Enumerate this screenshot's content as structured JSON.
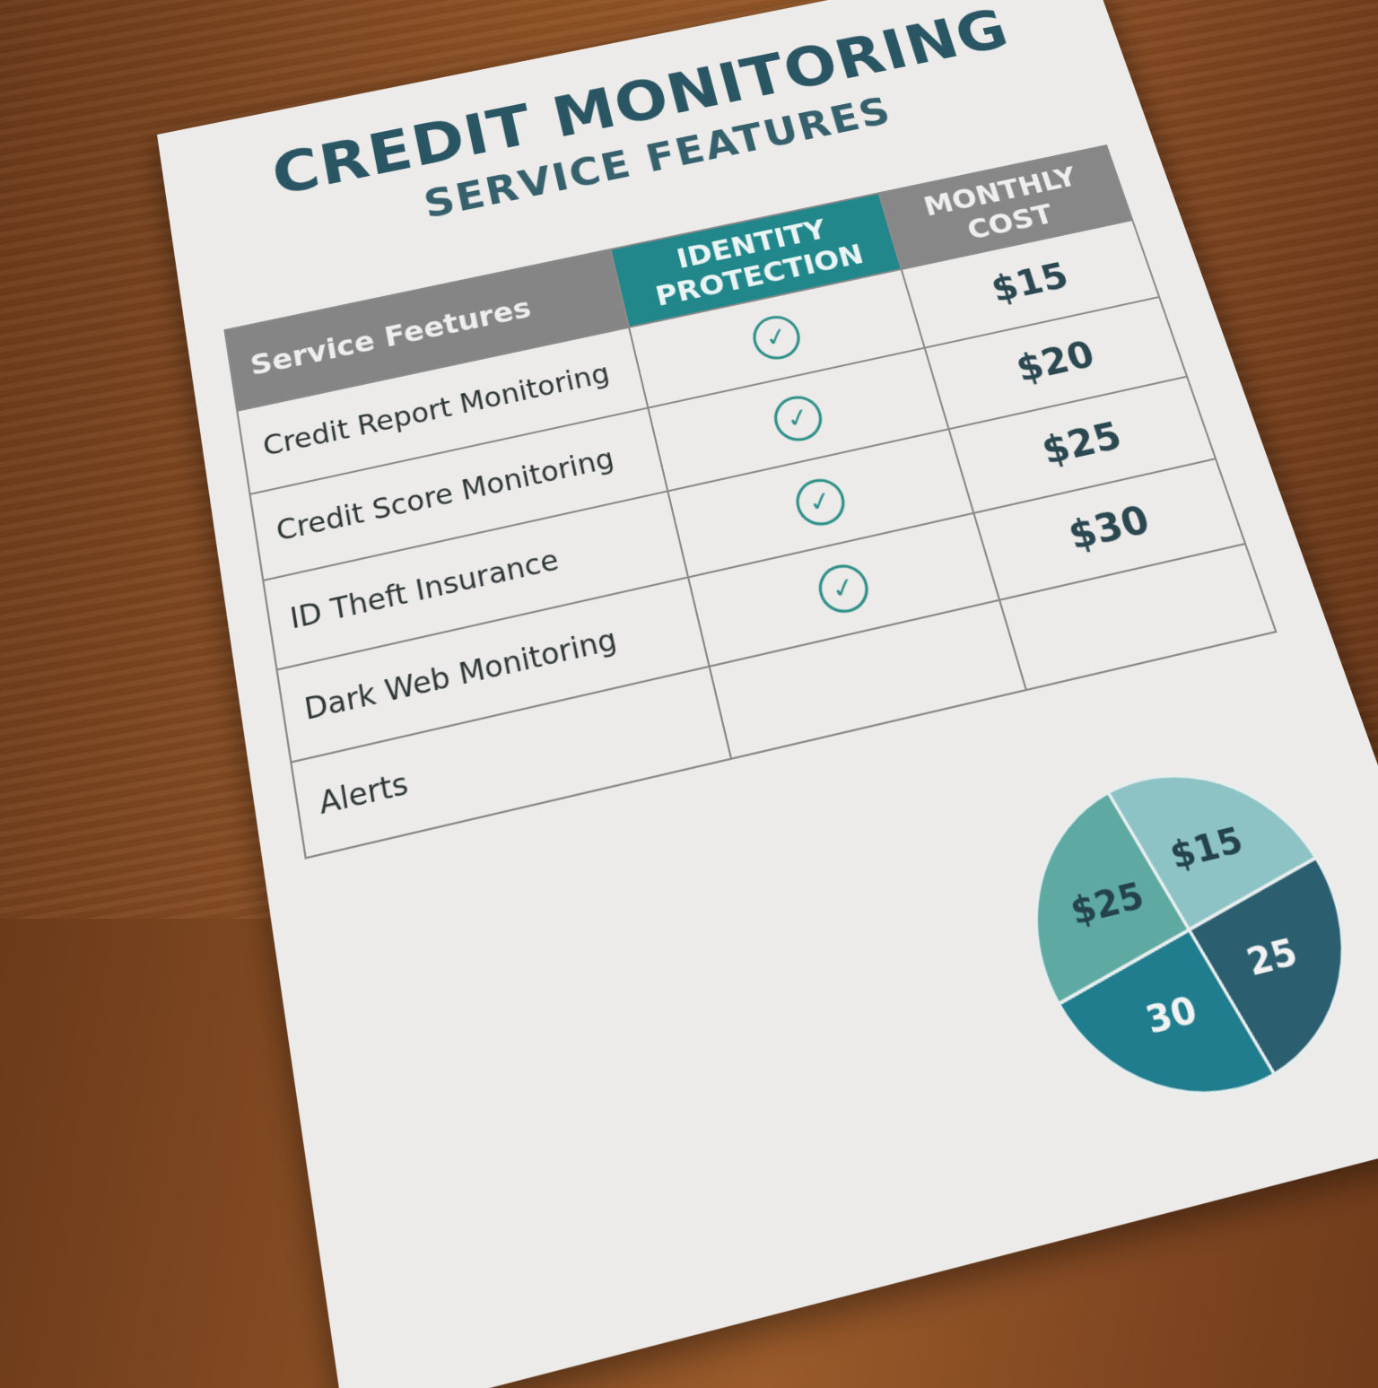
{
  "title": {
    "line1": "CREDIT MONITORING",
    "line2": "SERVICE FEATURES"
  },
  "table": {
    "headers": {
      "features": "Service Feetures",
      "identity": "IDENTITY PROTECTION",
      "cost": "MONTHLY COST"
    },
    "rows": [
      {
        "feature": "Credit Report Monitoring",
        "check": true,
        "cost": "$15"
      },
      {
        "feature": "Credit Score Monitoring",
        "check": true,
        "cost": "$20"
      },
      {
        "feature": "ID Theft Insurance",
        "check": true,
        "cost": "$25"
      },
      {
        "feature": "Dark Web Monitoring",
        "check": true,
        "cost": "$30"
      },
      {
        "feature": "Alerts",
        "check": false,
        "cost": ""
      }
    ],
    "check_icon": "check-circle-icon"
  },
  "pie": {
    "slices": [
      {
        "label": "$15",
        "value": 25,
        "color": "#8ec3c6"
      },
      {
        "label": "25",
        "value": 25,
        "color": "#2b5f70"
      },
      {
        "label": "30",
        "value": 25,
        "color": "#1f7d8e"
      },
      {
        "label": "$25",
        "value": 25,
        "color": "#5eaaa2"
      }
    ]
  },
  "colors": {
    "accent": "#22878a",
    "title": "#2a5563",
    "header_gray": "#858585"
  }
}
